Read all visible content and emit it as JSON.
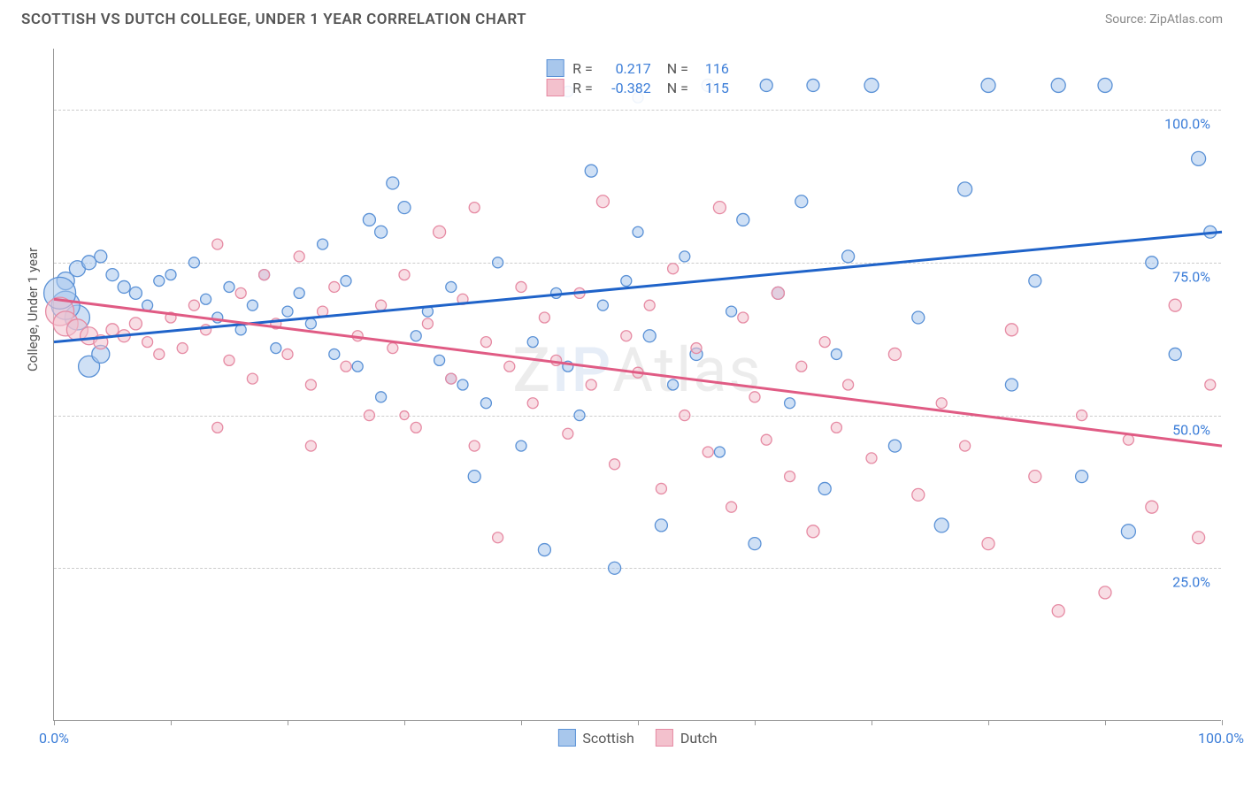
{
  "title": "SCOTTISH VS DUTCH COLLEGE, UNDER 1 YEAR CORRELATION CHART",
  "source_label": "Source:",
  "source_value": "ZipAtlas.com",
  "ylabel": "College, Under 1 year",
  "watermark_parts": {
    "z": "Z",
    "ip": "IP",
    "rest": "Atlas"
  },
  "y_ticks": [
    25.0,
    50.0,
    75.0,
    100.0
  ],
  "y_tick_labels": [
    "25.0%",
    "50.0%",
    "75.0%",
    "100.0%"
  ],
  "x_tick_positions": [
    0,
    10,
    20,
    30,
    40,
    50,
    60,
    70,
    80,
    90,
    100
  ],
  "x_axis_labels": {
    "start": "0.0%",
    "end": "100.0%"
  },
  "x_domain": [
    0,
    100
  ],
  "y_domain": [
    0,
    110
  ],
  "series": [
    {
      "name": "Scottish",
      "color_fill": "#a8c7ec",
      "color_stroke": "#5a91d6",
      "trend_color": "#1f63c9",
      "R": "0.217",
      "N": "116",
      "trend": [
        [
          0,
          62
        ],
        [
          100,
          80
        ]
      ],
      "points": [
        [
          1,
          72,
          10
        ],
        [
          2,
          74,
          9
        ],
        [
          3,
          75,
          8
        ],
        [
          4,
          76,
          7
        ],
        [
          5,
          73,
          7
        ],
        [
          6,
          71,
          7
        ],
        [
          7,
          70,
          7
        ],
        [
          8,
          68,
          6
        ],
        [
          9,
          72,
          6
        ],
        [
          10,
          73,
          6
        ],
        [
          3,
          58,
          12
        ],
        [
          4,
          60,
          10
        ],
        [
          2,
          66,
          14
        ],
        [
          1,
          68,
          16
        ],
        [
          0.5,
          70,
          18
        ],
        [
          12,
          75,
          6
        ],
        [
          13,
          69,
          6
        ],
        [
          14,
          66,
          6
        ],
        [
          15,
          71,
          6
        ],
        [
          16,
          64,
          6
        ],
        [
          17,
          68,
          6
        ],
        [
          18,
          73,
          6
        ],
        [
          19,
          61,
          6
        ],
        [
          20,
          67,
          6
        ],
        [
          21,
          70,
          6
        ],
        [
          22,
          65,
          6
        ],
        [
          23,
          78,
          6
        ],
        [
          24,
          60,
          6
        ],
        [
          25,
          72,
          6
        ],
        [
          26,
          58,
          6
        ],
        [
          27,
          82,
          7
        ],
        [
          28,
          80,
          7
        ],
        [
          29,
          88,
          7
        ],
        [
          30,
          84,
          7
        ],
        [
          31,
          63,
          6
        ],
        [
          32,
          67,
          6
        ],
        [
          33,
          59,
          6
        ],
        [
          34,
          71,
          6
        ],
        [
          35,
          55,
          6
        ],
        [
          36,
          40,
          7
        ],
        [
          37,
          52,
          6
        ],
        [
          38,
          75,
          6
        ],
        [
          40,
          45,
          6
        ],
        [
          41,
          62,
          6
        ],
        [
          42,
          28,
          7
        ],
        [
          43,
          70,
          6
        ],
        [
          44,
          58,
          6
        ],
        [
          45,
          50,
          6
        ],
        [
          46,
          90,
          7
        ],
        [
          47,
          68,
          6
        ],
        [
          48,
          25,
          7
        ],
        [
          49,
          72,
          6
        ],
        [
          50,
          80,
          6
        ],
        [
          51,
          63,
          7
        ],
        [
          52,
          32,
          7
        ],
        [
          53,
          55,
          6
        ],
        [
          54,
          76,
          6
        ],
        [
          55,
          60,
          7
        ],
        [
          56,
          104,
          7
        ],
        [
          57,
          44,
          6
        ],
        [
          58,
          67,
          6
        ],
        [
          59,
          82,
          7
        ],
        [
          60,
          29,
          7
        ],
        [
          61,
          104,
          7
        ],
        [
          62,
          70,
          7
        ],
        [
          63,
          52,
          6
        ],
        [
          64,
          85,
          7
        ],
        [
          65,
          104,
          7
        ],
        [
          66,
          38,
          7
        ],
        [
          67,
          60,
          6
        ],
        [
          68,
          76,
          7
        ],
        [
          70,
          104,
          8
        ],
        [
          72,
          45,
          7
        ],
        [
          74,
          66,
          7
        ],
        [
          76,
          32,
          8
        ],
        [
          78,
          87,
          8
        ],
        [
          80,
          104,
          8
        ],
        [
          82,
          55,
          7
        ],
        [
          84,
          72,
          7
        ],
        [
          86,
          104,
          8
        ],
        [
          88,
          40,
          7
        ],
        [
          90,
          104,
          8
        ],
        [
          92,
          31,
          8
        ],
        [
          94,
          75,
          7
        ],
        [
          96,
          60,
          7
        ],
        [
          98,
          92,
          8
        ],
        [
          99,
          80,
          7
        ],
        [
          44,
          103,
          6
        ],
        [
          50,
          102,
          6
        ],
        [
          34,
          56,
          6
        ],
        [
          28,
          53,
          6
        ]
      ]
    },
    {
      "name": "Dutch",
      "color_fill": "#f3c1cd",
      "color_stroke": "#e68aa3",
      "trend_color": "#e05b84",
      "R": "-0.382",
      "N": "115",
      "trend": [
        [
          0,
          69
        ],
        [
          100,
          45
        ]
      ],
      "points": [
        [
          0.5,
          67,
          16
        ],
        [
          1,
          65,
          14
        ],
        [
          2,
          64,
          12
        ],
        [
          3,
          63,
          10
        ],
        [
          4,
          62,
          8
        ],
        [
          5,
          64,
          7
        ],
        [
          6,
          63,
          7
        ],
        [
          7,
          65,
          7
        ],
        [
          8,
          62,
          6
        ],
        [
          9,
          60,
          6
        ],
        [
          10,
          66,
          6
        ],
        [
          11,
          61,
          6
        ],
        [
          12,
          68,
          6
        ],
        [
          13,
          64,
          6
        ],
        [
          14,
          78,
          6
        ],
        [
          15,
          59,
          6
        ],
        [
          16,
          70,
          6
        ],
        [
          17,
          56,
          6
        ],
        [
          18,
          73,
          6
        ],
        [
          19,
          65,
          6
        ],
        [
          20,
          60,
          6
        ],
        [
          21,
          76,
          6
        ],
        [
          22,
          55,
          6
        ],
        [
          23,
          67,
          6
        ],
        [
          24,
          71,
          6
        ],
        [
          25,
          58,
          6
        ],
        [
          26,
          63,
          6
        ],
        [
          27,
          50,
          6
        ],
        [
          28,
          68,
          6
        ],
        [
          29,
          61,
          6
        ],
        [
          30,
          73,
          6
        ],
        [
          31,
          48,
          6
        ],
        [
          32,
          65,
          6
        ],
        [
          33,
          80,
          7
        ],
        [
          34,
          56,
          6
        ],
        [
          35,
          69,
          6
        ],
        [
          36,
          45,
          6
        ],
        [
          37,
          62,
          6
        ],
        [
          38,
          30,
          6
        ],
        [
          39,
          58,
          6
        ],
        [
          40,
          71,
          6
        ],
        [
          41,
          52,
          6
        ],
        [
          42,
          66,
          6
        ],
        [
          43,
          59,
          6
        ],
        [
          44,
          47,
          6
        ],
        [
          45,
          70,
          6
        ],
        [
          46,
          55,
          6
        ],
        [
          47,
          85,
          7
        ],
        [
          48,
          42,
          6
        ],
        [
          49,
          63,
          6
        ],
        [
          50,
          57,
          6
        ],
        [
          51,
          68,
          6
        ],
        [
          52,
          38,
          6
        ],
        [
          53,
          74,
          6
        ],
        [
          54,
          50,
          6
        ],
        [
          55,
          61,
          6
        ],
        [
          56,
          44,
          6
        ],
        [
          57,
          84,
          7
        ],
        [
          58,
          35,
          6
        ],
        [
          59,
          66,
          6
        ],
        [
          60,
          53,
          6
        ],
        [
          61,
          46,
          6
        ],
        [
          62,
          70,
          7
        ],
        [
          63,
          40,
          6
        ],
        [
          64,
          58,
          6
        ],
        [
          65,
          31,
          7
        ],
        [
          66,
          62,
          6
        ],
        [
          67,
          48,
          6
        ],
        [
          68,
          55,
          6
        ],
        [
          70,
          43,
          6
        ],
        [
          72,
          60,
          7
        ],
        [
          74,
          37,
          7
        ],
        [
          76,
          52,
          6
        ],
        [
          78,
          45,
          6
        ],
        [
          80,
          29,
          7
        ],
        [
          82,
          64,
          7
        ],
        [
          84,
          40,
          7
        ],
        [
          86,
          18,
          7
        ],
        [
          88,
          50,
          6
        ],
        [
          90,
          21,
          7
        ],
        [
          92,
          46,
          6
        ],
        [
          94,
          35,
          7
        ],
        [
          96,
          68,
          7
        ],
        [
          98,
          30,
          7
        ],
        [
          99,
          55,
          6
        ],
        [
          14,
          48,
          6
        ],
        [
          22,
          45,
          6
        ],
        [
          30,
          50,
          5
        ],
        [
          36,
          84,
          6
        ]
      ]
    }
  ],
  "bottom_legend": [
    {
      "label": "Scottish",
      "fill": "#a8c7ec",
      "stroke": "#5a91d6"
    },
    {
      "label": "Dutch",
      "fill": "#f3c1cd",
      "stroke": "#e68aa3"
    }
  ]
}
